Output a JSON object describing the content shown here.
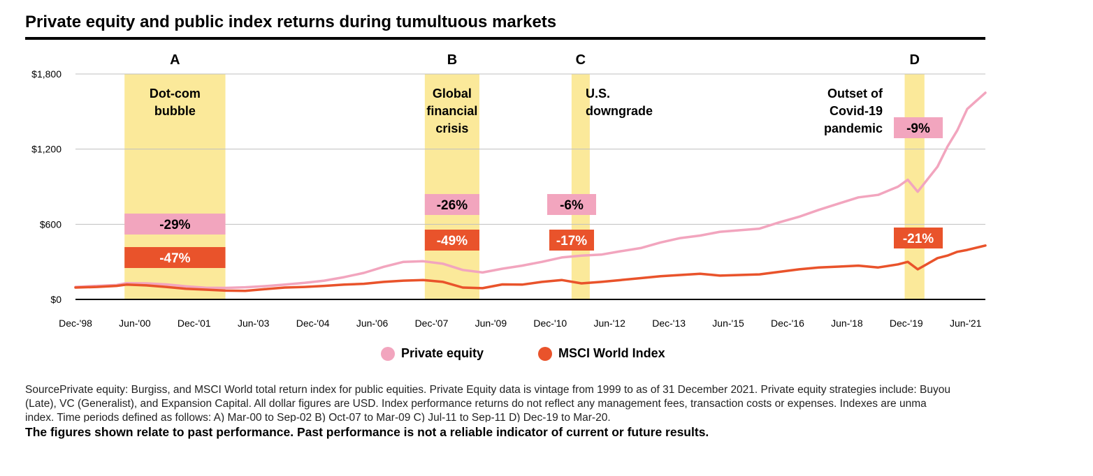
{
  "chart_data": {
    "type": "line",
    "title": "Private equity and public index returns during tumultuous markets",
    "xlabel": "",
    "ylabel": "",
    "ylim": [
      0,
      1800
    ],
    "y_ticks": [
      "$0",
      "$600",
      "$1,200",
      "$1,800"
    ],
    "x_tick_labels": [
      "Dec-'98",
      "Jun-'00",
      "Dec-'01",
      "Jun-'03",
      "Dec-'04",
      "Jun-'06",
      "Dec-'07",
      "Jun-'09",
      "Dec-'10",
      "Jun-'12",
      "Dec-'13",
      "Jun-'15",
      "Dec-'16",
      "Jun-'18",
      "Dec-'19",
      "Jun-'21"
    ],
    "grid": "horizontal",
    "legend_placement": "bottom-center",
    "series": [
      {
        "name": "Private equity",
        "color": "#F2A5BE",
        "x": [
          1998.96,
          1999.5,
          2000.0,
          2000.25,
          2000.75,
          2001.25,
          2001.75,
          2002.25,
          2002.75,
          2003.25,
          2003.75,
          2004.25,
          2004.75,
          2005.25,
          2005.75,
          2006.25,
          2006.75,
          2007.25,
          2007.75,
          2008.25,
          2008.75,
          2009.25,
          2009.75,
          2010.25,
          2010.75,
          2011.25,
          2011.75,
          2012.25,
          2012.75,
          2013.25,
          2013.75,
          2014.25,
          2014.75,
          2015.25,
          2015.75,
          2016.25,
          2016.75,
          2017.25,
          2017.75,
          2018.25,
          2018.75,
          2019.25,
          2019.75,
          2020.0,
          2020.25,
          2020.5,
          2020.75,
          2021.0,
          2021.25,
          2021.5,
          2021.96
        ],
        "values": [
          100,
          108,
          115,
          130,
          128,
          120,
          105,
          93,
          92,
          97,
          106,
          118,
          132,
          150,
          178,
          212,
          260,
          300,
          305,
          285,
          235,
          215,
          245,
          270,
          300,
          335,
          350,
          358,
          385,
          410,
          455,
          490,
          510,
          540,
          552,
          565,
          615,
          660,
          715,
          765,
          815,
          835,
          900,
          955,
          860,
          960,
          1060,
          1220,
          1350,
          1520,
          1650
        ]
      },
      {
        "name": "MSCI World Index",
        "color": "#E9532B",
        "x": [
          1998.96,
          1999.5,
          2000.0,
          2000.25,
          2000.75,
          2001.25,
          2001.75,
          2002.25,
          2002.75,
          2003.25,
          2003.75,
          2004.25,
          2004.75,
          2005.25,
          2005.75,
          2006.25,
          2006.75,
          2007.25,
          2007.75,
          2008.25,
          2008.75,
          2009.25,
          2009.75,
          2010.25,
          2010.75,
          2011.25,
          2011.75,
          2012.25,
          2012.75,
          2013.25,
          2013.75,
          2014.25,
          2014.75,
          2015.25,
          2015.75,
          2016.25,
          2016.75,
          2017.25,
          2017.75,
          2018.25,
          2018.75,
          2019.25,
          2019.75,
          2020.0,
          2020.25,
          2020.5,
          2020.75,
          2021.0,
          2021.25,
          2021.5,
          2021.96
        ],
        "values": [
          95,
          100,
          108,
          118,
          112,
          100,
          85,
          78,
          70,
          68,
          82,
          95,
          100,
          108,
          118,
          125,
          140,
          150,
          155,
          140,
          95,
          90,
          120,
          118,
          140,
          155,
          128,
          140,
          155,
          170,
          185,
          195,
          205,
          190,
          195,
          200,
          220,
          240,
          255,
          262,
          270,
          255,
          280,
          300,
          240,
          285,
          330,
          350,
          380,
          395,
          430
        ]
      }
    ],
    "periods": [
      {
        "letter": "A",
        "label_lines": [
          "Dot-com",
          "bubble"
        ],
        "start": 2000.2,
        "end": 2002.75,
        "private_equity_change": "-29%",
        "msci_change": "-47%"
      },
      {
        "letter": "B",
        "label_lines": [
          "Global",
          "financial",
          "crisis"
        ],
        "start": 2007.79,
        "end": 2009.17,
        "private_equity_change": "-26%",
        "msci_change": "-49%"
      },
      {
        "letter": "C",
        "label_lines": [
          "U.S.",
          "downgrade"
        ],
        "start": 2011.5,
        "end": 2011.96,
        "private_equity_change": "-6%",
        "msci_change": "-17%"
      },
      {
        "letter": "D",
        "label_lines": [
          "Outset of",
          "Covid-19",
          "pandemic"
        ],
        "start": 2019.92,
        "end": 2020.42,
        "private_equity_change": "-9%",
        "msci_change": "-21%"
      }
    ],
    "colors": {
      "band": "#FBE99A",
      "private_equity": "#F2A5BE",
      "msci": "#E9532B",
      "grid": "#BFBFBF",
      "axis": "#000000"
    }
  },
  "legend": {
    "private_equity": "Private equity",
    "msci": "MSCI World Index"
  },
  "footnote": {
    "lines": [
      "SourcePrivate equity: Burgiss, and MSCI World total return index for public equities. Private Equity data is vintage from 1999 to as of 31 December 2021. Private equity strategies include: Buyou",
      "(Late), VC (Generalist), and Expansion Capital. All dollar figures are USD. Index performance returns do not reflect any management fees, transaction costs or expenses. Indexes are unma",
      "index. Time periods defined as follows: A) Mar-00 to Sep-02 B) Oct-07 to Mar-09 C) Jul-11 to Sep-11 D) Dec-19 to Mar-20."
    ],
    "disclaimer": "The figures shown relate to past performance. Past performance is not a reliable indicator of current or future results."
  }
}
